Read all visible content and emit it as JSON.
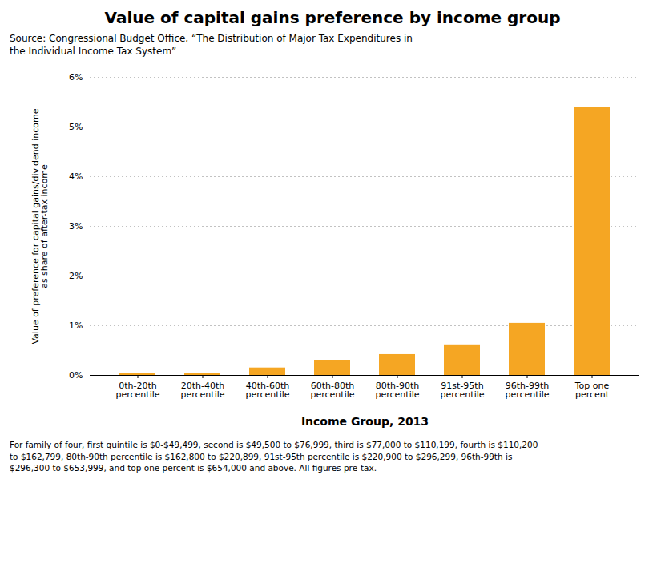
{
  "chart_data": {
    "type": "bar",
    "title": "Value of capital gains preference by income group",
    "subtitle": "Source: Congressional Budget Office, “The Distribution of Major Tax Expenditures in\nthe Individual Income Tax System”",
    "categories": [
      "0th-20th\npercentile",
      "20th-40th\npercentile",
      "40th-60th\npercentile",
      "60th-80th\npercentile",
      "80th-90th\npercentile",
      "91st-95th\npercentile",
      "96th-99th\npercentile",
      "Top one\npercent"
    ],
    "values": [
      0.00035,
      0.00035,
      0.0015,
      0.003,
      0.0042,
      0.006,
      0.0105,
      0.054
    ],
    "color": "#F5A623",
    "xlabel": "Income Group, 2013",
    "ylabel": "Value of preference for capital gains/dividend income\nas share of after-tax income",
    "ylim": [
      0,
      0.06
    ],
    "yticks": [
      {
        "value": 0,
        "label": "0%"
      },
      {
        "value": 0.01,
        "label": "1%"
      },
      {
        "value": 0.02,
        "label": "2%"
      },
      {
        "value": 0.03,
        "label": "3%"
      },
      {
        "value": 0.04,
        "label": "4%"
      },
      {
        "value": 0.05,
        "label": "5%"
      },
      {
        "value": 0.06,
        "label": "6%"
      }
    ],
    "grid": true,
    "footnote": "For family of four, first quintile is $0-$49,499, second is $49,500 to $76,999, third is $77,000 to $110,199, fourth is $110,200\nto $162,799, 80th-90th percentile is $162,800 to $220,899, 91st-95th percentile is $220,900 to $296,299, 96th-99th is\n$296,300 to $653,999, and top one percent is $654,000 and above. All figures pre-tax."
  }
}
